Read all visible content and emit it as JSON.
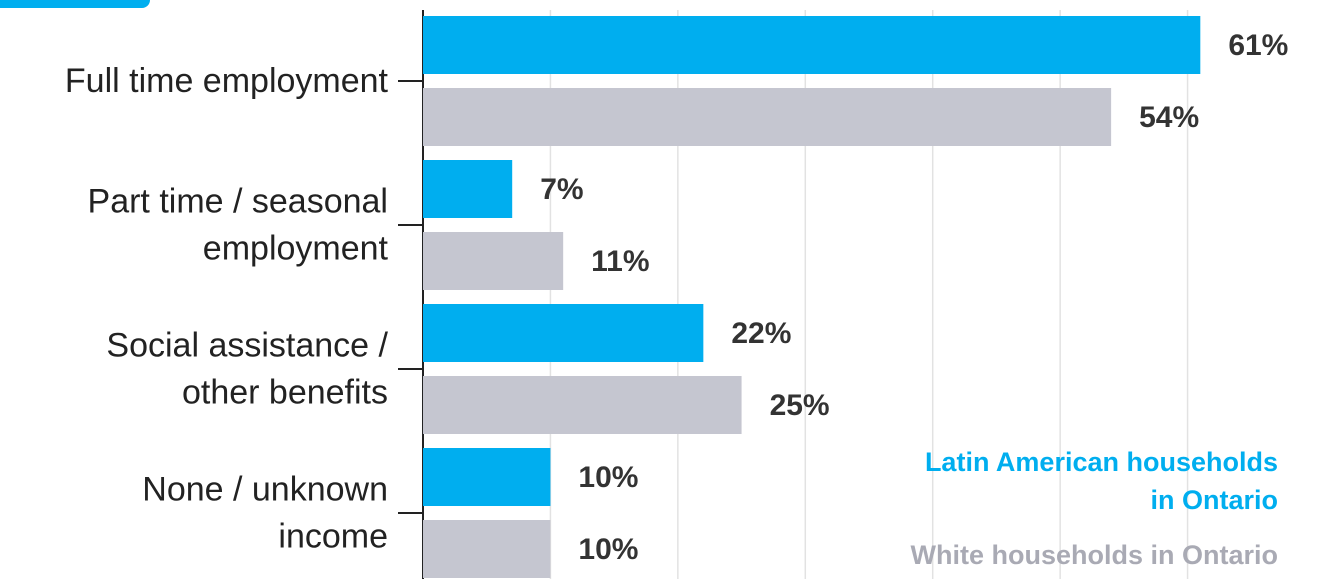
{
  "chart_data": {
    "type": "bar",
    "orientation": "horizontal",
    "categories": [
      "Full time employment",
      "Part time / seasonal\nemployment",
      "Social assistance /\nother benefits",
      "None / unknown\nincome"
    ],
    "series": [
      {
        "name": "Latin American households\nin Ontario",
        "color": "#00aeef",
        "values": [
          61,
          7,
          22,
          10
        ],
        "value_labels": [
          "61%",
          "7%",
          "22%",
          "10%"
        ]
      },
      {
        "name": "White households in Ontario",
        "color": "#c5c6d0",
        "values": [
          54,
          11,
          25,
          10
        ],
        "value_labels": [
          "54%",
          "11%",
          "25%",
          "10%"
        ]
      }
    ],
    "xlim": [
      0,
      70
    ],
    "xticks": [
      10,
      20,
      30,
      40,
      50,
      60
    ],
    "grid": true
  }
}
